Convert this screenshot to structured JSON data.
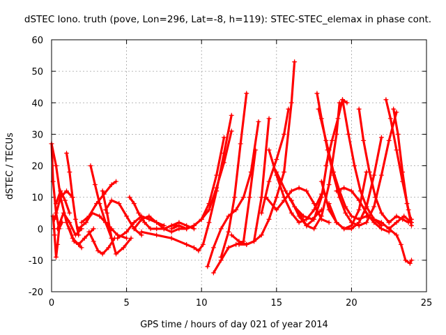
{
  "chart_data": {
    "type": "line",
    "title": "dSTEC Iono. truth (pove, Lon=296, Lat=-8, h=119): STEC-STEC_elemax in phase cont.",
    "xlabel": "GPS time / hours of day 021 of year 2014",
    "ylabel": "dSTEC  / TECUs",
    "xlim": [
      0,
      25
    ],
    "ylim": [
      -20,
      60
    ],
    "x_ticks": [
      0,
      5,
      10,
      15,
      20,
      25
    ],
    "y_ticks": [
      -20,
      -10,
      0,
      10,
      20,
      30,
      40,
      50,
      60
    ],
    "grid": true,
    "legend": "none",
    "marker": "plus",
    "series_color": "#ff0000",
    "series": [
      {
        "x": [
          0.0,
          0.3,
          0.6,
          1.0,
          1.4,
          1.8,
          2.2,
          2.8
        ],
        "values": [
          27,
          20,
          10,
          2,
          -3,
          -5,
          -3,
          0
        ]
      },
      {
        "x": [
          0.0,
          0.1,
          0.3,
          0.5,
          0.7
        ],
        "values": [
          27,
          15,
          5,
          0,
          2
        ]
      },
      {
        "x": [
          0.1,
          0.2,
          0.3,
          0.4,
          0.5
        ],
        "values": [
          4,
          -2,
          -9,
          -5,
          0
        ]
      },
      {
        "x": [
          0.2,
          0.6,
          1.0,
          1.4
        ],
        "values": [
          3,
          10,
          12,
          10
        ]
      },
      {
        "x": [
          0.3,
          0.6,
          0.9,
          1.2
        ],
        "values": [
          8,
          12,
          9,
          5
        ]
      },
      {
        "x": [
          0.4,
          0.8,
          1.2,
          1.6,
          2.0
        ],
        "values": [
          0,
          5,
          2,
          -2,
          0
        ]
      },
      {
        "x": [
          1.0,
          1.2,
          1.4,
          1.6,
          1.8
        ],
        "values": [
          24,
          18,
          10,
          3,
          -2
        ]
      },
      {
        "x": [
          1.2,
          1.5,
          1.8,
          2.0
        ],
        "values": [
          0,
          -4,
          -5,
          -6
        ]
      },
      {
        "x": [
          1.8,
          2.3,
          2.7,
          3.2,
          3.6,
          4.0,
          4.4,
          5.0
        ],
        "values": [
          0,
          2,
          5,
          4,
          2,
          0,
          -2,
          -3
        ]
      },
      {
        "x": [
          2.0,
          2.5,
          3.0,
          3.5,
          4.0,
          4.3
        ],
        "values": [
          2,
          4,
          8,
          11,
          14,
          15
        ]
      },
      {
        "x": [
          2.5,
          2.8,
          3.1,
          3.4,
          3.8,
          4.2
        ],
        "values": [
          -1,
          -4,
          -7,
          -8,
          -6,
          -3
        ]
      },
      {
        "x": [
          2.6,
          2.9,
          3.2,
          3.6,
          4.0
        ],
        "values": [
          20,
          14,
          8,
          2,
          -3
        ]
      },
      {
        "x": [
          3.4,
          3.7,
          4.0,
          4.3,
          4.8,
          5.3
        ],
        "values": [
          12,
          5,
          -3,
          -8,
          -6,
          -3
        ]
      },
      {
        "x": [
          3.6,
          4.0,
          4.5,
          5.0,
          5.5,
          6.0
        ],
        "values": [
          6,
          9,
          8,
          4,
          0,
          -2
        ]
      },
      {
        "x": [
          4.4,
          5.0,
          5.5,
          6.0,
          6.5,
          7.0,
          7.5
        ],
        "values": [
          -3,
          -1,
          2,
          4,
          3,
          2,
          1
        ]
      },
      {
        "x": [
          5.2,
          5.5,
          5.8,
          6.2,
          6.6,
          7.0
        ],
        "values": [
          10,
          8,
          5,
          2,
          0,
          0
        ]
      },
      {
        "x": [
          5.5,
          6.0,
          6.5,
          7.0,
          7.5,
          8.0,
          8.5,
          9.0,
          9.5
        ],
        "values": [
          0,
          3,
          4,
          2,
          0,
          1,
          2,
          1,
          0
        ]
      },
      {
        "x": [
          7.0,
          7.5,
          8.0,
          8.5,
          9.0,
          9.5
        ],
        "values": [
          0,
          0,
          1,
          1,
          0,
          1
        ]
      },
      {
        "x": [
          6.0,
          7.0,
          8.0,
          9.0,
          9.5,
          9.8,
          10.1,
          10.5,
          11.0,
          11.5,
          12.0
        ],
        "values": [
          -1,
          -2,
          -3,
          -5,
          -6,
          -7,
          -5,
          2,
          12,
          24,
          36
        ]
      },
      {
        "x": [
          7.5,
          8.0,
          8.5,
          9.0,
          9.5,
          10.0,
          10.5,
          11.0,
          11.5,
          12.0
        ],
        "values": [
          0,
          -1,
          0,
          0,
          1,
          3,
          6,
          13,
          21,
          31
        ]
      },
      {
        "x": [
          8.0,
          8.5,
          9.0,
          9.5,
          10.0,
          10.5,
          11.0,
          11.5
        ],
        "values": [
          0,
          1,
          0,
          1,
          3,
          8,
          17,
          29
        ]
      },
      {
        "x": [
          10.4,
          10.8,
          11.3,
          11.8,
          12.3,
          12.8,
          13.3,
          13.8
        ],
        "values": [
          -12,
          -6,
          0,
          4,
          6,
          10,
          18,
          34
        ]
      },
      {
        "x": [
          10.8,
          11.3,
          11.8,
          12.3,
          12.8,
          13.2,
          13.6
        ],
        "values": [
          -14,
          -10,
          -6,
          -5,
          -4,
          10,
          25
        ]
      },
      {
        "x": [
          11.3,
          11.8,
          12.2,
          12.6,
          13.0
        ],
        "values": [
          -9,
          -1,
          10,
          27,
          43
        ]
      },
      {
        "x": [
          12.0,
          12.5,
          13.0,
          13.5,
          14.0,
          14.5
        ],
        "values": [
          -2,
          -4,
          -5,
          -4,
          10,
          35
        ]
      },
      {
        "x": [
          12.5,
          13.0,
          13.5,
          14.0,
          14.5,
          15.0,
          15.5,
          16.0,
          16.2
        ],
        "values": [
          -5,
          -5,
          -4,
          -2,
          3,
          10,
          18,
          40,
          53
        ]
      },
      {
        "x": [
          14.0,
          14.5,
          15.0,
          15.5,
          15.8
        ],
        "values": [
          5,
          15,
          22,
          30,
          38
        ]
      },
      {
        "x": [
          14.5,
          15.0,
          15.5,
          16.0,
          16.5,
          17.0,
          17.5,
          18.0
        ],
        "values": [
          25,
          17,
          10,
          5,
          2,
          3,
          6,
          11
        ]
      },
      {
        "x": [
          14.3,
          15.0,
          15.5,
          16.0,
          16.5,
          17.0,
          17.5,
          18.0,
          18.5
        ],
        "values": [
          10,
          6,
          9,
          12,
          13,
          12,
          8,
          3,
          2
        ]
      },
      {
        "x": [
          15.0,
          15.6,
          16.2,
          16.8,
          17.4,
          18.0
        ],
        "values": [
          18,
          12,
          7,
          4,
          3,
          6
        ]
      },
      {
        "x": [
          16.0,
          16.5,
          17.0,
          17.5,
          18.0,
          18.5
        ],
        "values": [
          9,
          4,
          1,
          3,
          10,
          25
        ]
      },
      {
        "x": [
          16.5,
          17.0,
          17.5,
          18.0,
          18.5,
          19.0,
          19.2
        ],
        "values": [
          5,
          1,
          0,
          4,
          14,
          30,
          40
        ]
      },
      {
        "x": [
          17.7,
          18.0,
          18.4,
          18.8,
          19.2,
          19.6,
          20.0,
          20.5
        ],
        "values": [
          43,
          35,
          25,
          17,
          10,
          5,
          2,
          1
        ]
      },
      {
        "x": [
          17.8,
          18.3,
          18.8,
          19.2,
          19.6,
          20.0,
          20.5,
          21.0
        ],
        "values": [
          38,
          28,
          18,
          12,
          7,
          4,
          3,
          4
        ]
      },
      {
        "x": [
          18.0,
          18.5,
          19.0,
          19.5,
          20.0,
          20.5,
          21.0
        ],
        "values": [
          15,
          6,
          2,
          0,
          1,
          6,
          18
        ]
      },
      {
        "x": [
          18.5,
          19.0,
          19.5,
          20.0,
          20.5,
          21.0,
          21.5,
          22.0
        ],
        "values": [
          8,
          2,
          0,
          0,
          2,
          7,
          17,
          29
        ]
      },
      {
        "x": [
          18.3,
          18.7,
          19.1,
          19.4,
          19.7
        ],
        "values": [
          20,
          28,
          35,
          41,
          40
        ]
      },
      {
        "x": [
          19.4,
          19.8,
          20.2,
          20.6,
          21.0,
          21.5,
          22.0
        ],
        "values": [
          41,
          30,
          20,
          12,
          7,
          3,
          1
        ]
      },
      {
        "x": [
          19.0,
          19.5,
          20.0,
          20.5,
          21.0,
          21.5,
          22.0,
          22.5
        ],
        "values": [
          12,
          13,
          12,
          9,
          5,
          2,
          0,
          -1
        ]
      },
      {
        "x": [
          20.5,
          20.8,
          21.2,
          21.6,
          22.0,
          22.5
        ],
        "values": [
          38,
          28,
          18,
          10,
          5,
          2
        ]
      },
      {
        "x": [
          20.5,
          21.0,
          21.5,
          22.0,
          22.5,
          23.0
        ],
        "values": [
          1,
          2,
          7,
          17,
          28,
          37
        ]
      },
      {
        "x": [
          21.0,
          21.5,
          22.0,
          22.5,
          23.0,
          23.5,
          24.0
        ],
        "values": [
          4,
          3,
          2,
          0,
          2,
          4,
          2
        ]
      },
      {
        "x": [
          22.3,
          22.6,
          23.0,
          23.4,
          23.8,
          24.0
        ],
        "values": [
          41,
          35,
          25,
          15,
          6,
          2
        ]
      },
      {
        "x": [
          22.8,
          23.1,
          23.4,
          23.7,
          24.0
        ],
        "values": [
          38,
          30,
          18,
          8,
          1
        ]
      },
      {
        "x": [
          22.5,
          23.0,
          23.4,
          23.8,
          24.0
        ],
        "values": [
          2,
          4,
          3,
          2,
          3
        ]
      },
      {
        "x": [
          22.5,
          23.0,
          23.3,
          23.6,
          23.9,
          24.0
        ],
        "values": [
          0,
          -2,
          -5,
          -10,
          -11,
          -10
        ]
      }
    ]
  }
}
